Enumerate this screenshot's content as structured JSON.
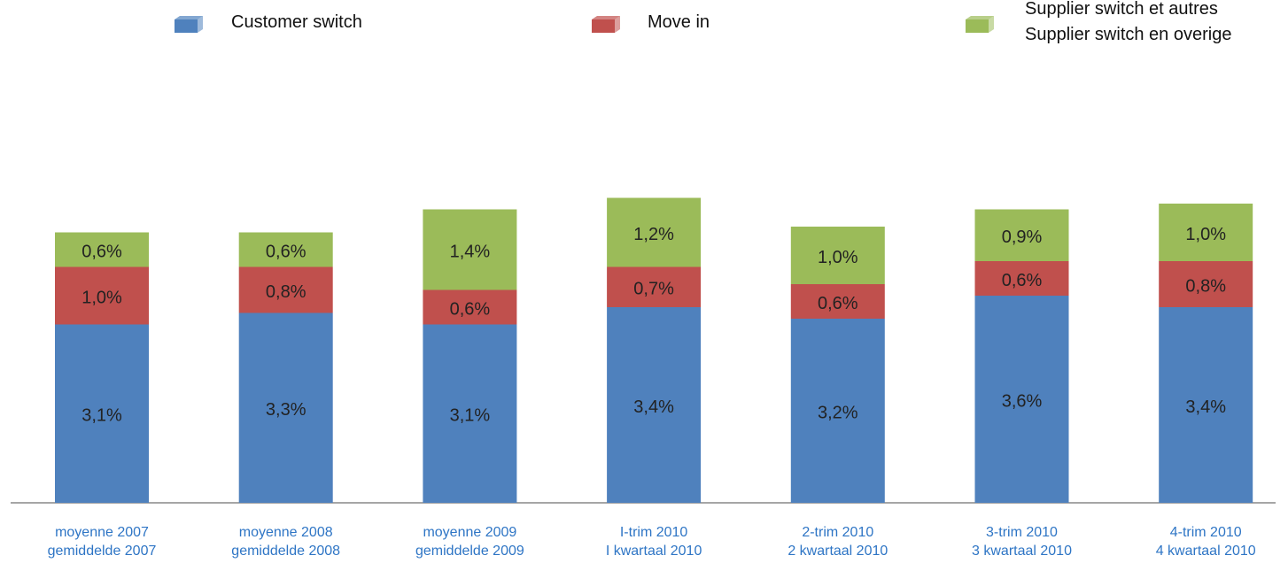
{
  "chart_data": {
    "type": "stacked_bar",
    "categories": [
      "moyenne 2007\ngemiddelde 2007",
      "moyenne 2008\ngemiddelde 2008",
      "moyenne 2009\ngemiddelde 2009",
      "I-trim 2010\nI kwartaal 2010",
      "2-trim 2010\n2 kwartaal 2010",
      "3-trim 2010\n3 kwartaal 2010",
      "4-trim 2010\n4 kwartaal 2010"
    ],
    "series": [
      {
        "name": "Customer switch",
        "color": "#4f81bd",
        "values": [
          3.1,
          3.3,
          3.1,
          3.4,
          3.2,
          3.6,
          3.4
        ],
        "value_labels": [
          "3,1%",
          "3,3%",
          "3,1%",
          "3,4%",
          "3,2%",
          "3,6%",
          "3,4%"
        ]
      },
      {
        "name": "Move in",
        "color": "#c0504d",
        "values": [
          1.0,
          0.8,
          0.6,
          0.7,
          0.6,
          0.6,
          0.8
        ],
        "value_labels": [
          "1,0%",
          "0,8%",
          "0,6%",
          "0,7%",
          "0,6%",
          "0,6%",
          "0,8%"
        ]
      },
      {
        "name": "Supplier switch et autres\nSupplier switch en overige",
        "color": "#9bbb59",
        "values": [
          0.6,
          0.6,
          1.4,
          1.2,
          1.0,
          0.9,
          1.0
        ],
        "value_labels": [
          "0,6%",
          "0,6%",
          "1,4%",
          "1,2%",
          "1,0%",
          "0,9%",
          "1,0%"
        ]
      }
    ],
    "ylim": [
      0,
      6
    ]
  }
}
